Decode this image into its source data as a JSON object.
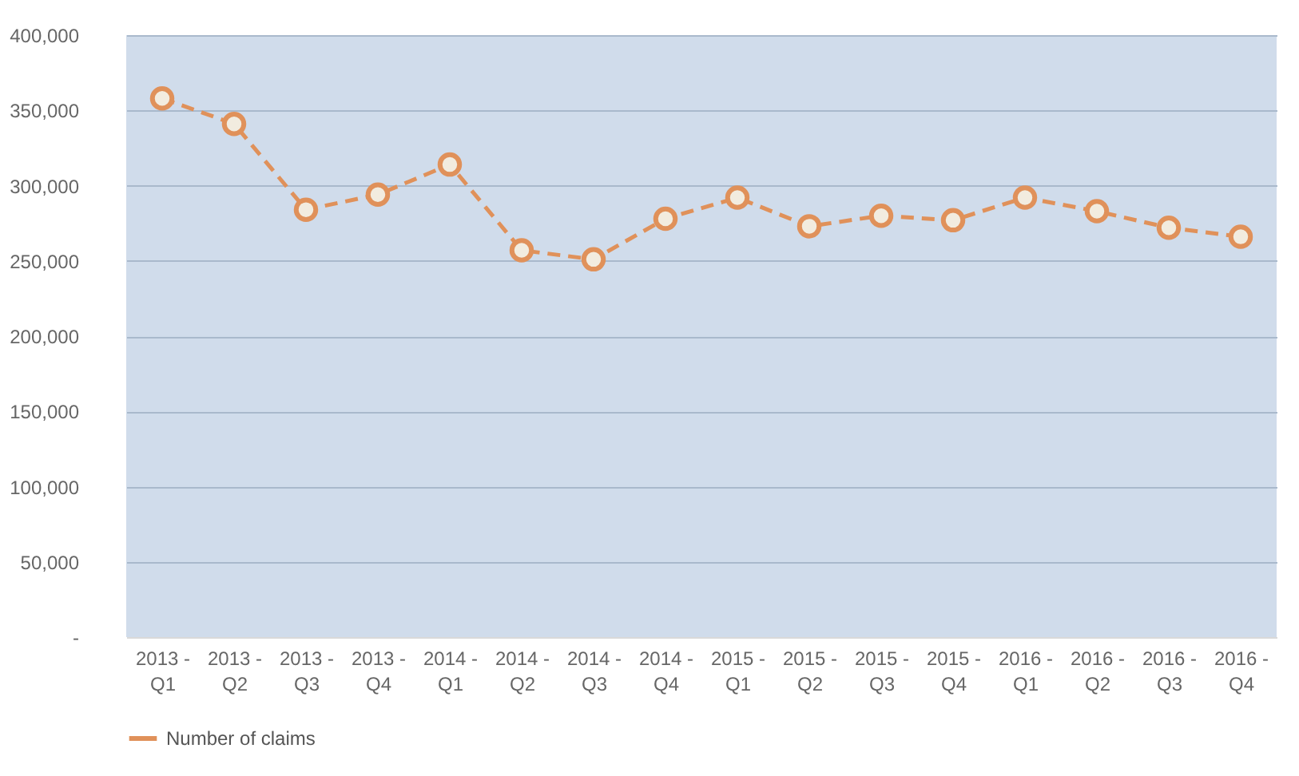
{
  "chart_data": {
    "type": "line",
    "categories": [
      "2013 - Q1",
      "2013 - Q2",
      "2013 - Q3",
      "2013 - Q4",
      "2014 - Q1",
      "2014 - Q2",
      "2014 - Q3",
      "2014 - Q4",
      "2015 - Q1",
      "2015 - Q2",
      "2015 - Q3",
      "2015 - Q4",
      "2016 - Q1",
      "2016 - Q2",
      "2016 - Q3",
      "2016 - Q4"
    ],
    "series": [
      {
        "name": "Number of claims",
        "color": "#e0915a",
        "values": [
          358000,
          341000,
          284000,
          294000,
          314000,
          257000,
          251000,
          278000,
          292000,
          273000,
          280000,
          277000,
          292000,
          283000,
          272000,
          266000
        ]
      }
    ],
    "ylim": [
      0,
      400000
    ],
    "yticks": [
      {
        "value": 0,
        "label": "-"
      },
      {
        "value": 50000,
        "label": "50,000"
      },
      {
        "value": 100000,
        "label": "100,000"
      },
      {
        "value": 150000,
        "label": "150,000"
      },
      {
        "value": 200000,
        "label": "200,000"
      },
      {
        "value": 250000,
        "label": "250,000"
      },
      {
        "value": 300000,
        "label": "300,000"
      },
      {
        "value": 350000,
        "label": "350,000"
      },
      {
        "value": 400000,
        "label": "400,000"
      }
    ],
    "grid": "y",
    "legend": "bottom",
    "marker": "circle",
    "line_style": "dashed"
  }
}
